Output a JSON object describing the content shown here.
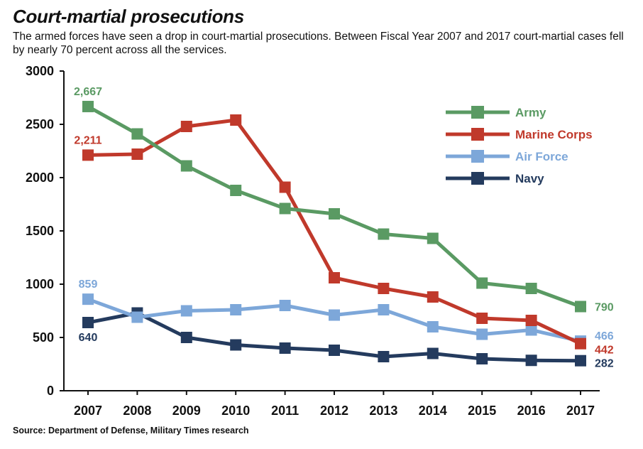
{
  "title": "Court-martial prosecutions",
  "subtitle": "The armed forces have seen a drop in court-martial prosecutions. Between Fiscal Year 2007 and 2017 court-martial cases fell by nearly 70 percent across all the services.",
  "source": "Source:  Department of Defense, Military Times research",
  "chart_data": {
    "type": "line",
    "x": [
      "2007",
      "2008",
      "2009",
      "2010",
      "2011",
      "2012",
      "2013",
      "2014",
      "2015",
      "2016",
      "2017"
    ],
    "ylim": [
      0,
      3000
    ],
    "yticks": [
      "0",
      "500",
      "1000",
      "1500",
      "2000",
      "2500",
      "3000"
    ],
    "grid": false,
    "legend_position": "top-right",
    "series": [
      {
        "name": "Army",
        "color": "#5a9a63",
        "values": [
          2667,
          2410,
          2110,
          1880,
          1710,
          1660,
          1470,
          1430,
          1010,
          960,
          790
        ],
        "labels": [
          {
            "index": 0,
            "text": "2,667"
          },
          {
            "index": 10,
            "text": "790"
          }
        ]
      },
      {
        "name": "Marine Corps",
        "color": "#c0392b",
        "values": [
          2211,
          2220,
          2480,
          2540,
          1910,
          1060,
          960,
          880,
          680,
          660,
          442
        ],
        "labels": [
          {
            "index": 0,
            "text": "2,211"
          },
          {
            "index": 10,
            "text": "442"
          }
        ]
      },
      {
        "name": "Air Force",
        "color": "#7da7d9",
        "values": [
          859,
          690,
          750,
          760,
          800,
          710,
          760,
          600,
          530,
          570,
          466
        ],
        "labels": [
          {
            "index": 0,
            "text": "859"
          },
          {
            "index": 10,
            "text": "466"
          }
        ]
      },
      {
        "name": "Navy",
        "color": "#243b5e",
        "values": [
          640,
          730,
          500,
          430,
          400,
          380,
          320,
          350,
          300,
          285,
          282
        ],
        "labels": [
          {
            "index": 0,
            "text": "640"
          },
          {
            "index": 10,
            "text": "282"
          }
        ]
      }
    ]
  }
}
